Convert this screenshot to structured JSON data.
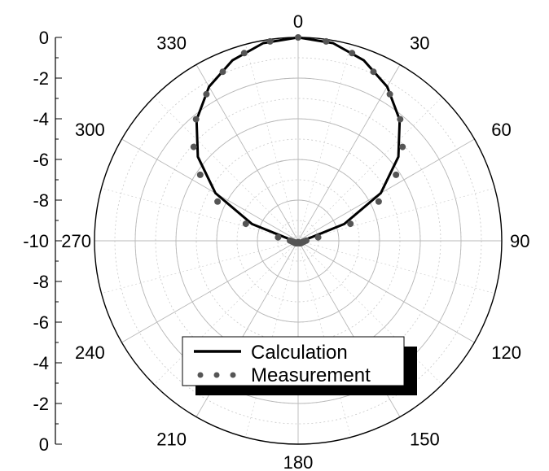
{
  "chart_data": {
    "type": "polar",
    "angle_labels": [
      "0",
      "30",
      "60",
      "90",
      "120",
      "150",
      "180",
      "210",
      "240",
      "270",
      "300",
      "330"
    ],
    "radial_axis": {
      "range": [
        -10,
        0
      ],
      "tick_labels_upper": [
        "0",
        "-2",
        "-4",
        "-6",
        "-8",
        "-10"
      ],
      "tick_labels_lower": [
        "-8",
        "-6",
        "-4",
        "-2",
        "0"
      ]
    },
    "series": [
      {
        "name": "Calculation",
        "style": "line",
        "color": "#000000",
        "theta_deg": [
          0,
          10,
          20,
          30,
          40,
          50,
          60,
          70,
          80,
          90,
          100,
          110,
          120,
          130,
          140,
          150,
          160,
          165,
          170,
          175,
          180,
          185,
          190,
          195,
          200,
          210,
          220,
          230,
          240,
          250,
          260,
          270,
          280,
          290,
          300,
          310,
          320,
          330,
          340,
          350,
          360
        ],
        "r_db": [
          0,
          -0.13,
          -0.56,
          -1.25,
          -2.24,
          -3.57,
          -5.31,
          -7.59,
          -9.6,
          -9.7,
          -9.75,
          -9.78,
          -9.8,
          -9.82,
          -9.84,
          -9.86,
          -9.88,
          -9.89,
          -9.9,
          -9.92,
          -9.95,
          -9.92,
          -9.9,
          -9.89,
          -9.88,
          -9.86,
          -9.84,
          -9.82,
          -9.8,
          -9.78,
          -9.75,
          -9.7,
          -9.6,
          -7.59,
          -5.31,
          -3.57,
          -2.24,
          -1.25,
          -0.56,
          -0.13,
          0
        ]
      },
      {
        "name": "Measurement",
        "style": "dots",
        "color": "#555555",
        "theta_deg": [
          0,
          8,
          16,
          24,
          32,
          40,
          48,
          56,
          64,
          72,
          80,
          88,
          96,
          104,
          112,
          120,
          128,
          136,
          144,
          152,
          160,
          168,
          176,
          184,
          192,
          200,
          208,
          216,
          224,
          232,
          240,
          248,
          256,
          264,
          272,
          280,
          288,
          296,
          304,
          312,
          320,
          328,
          336,
          344,
          352
        ],
        "r_db": [
          0,
          -0.1,
          -0.4,
          -0.9,
          -1.5,
          -2.2,
          -3.1,
          -4.2,
          -5.6,
          -7.3,
          -9.0,
          -9.6,
          -9.7,
          -9.75,
          -9.8,
          -9.8,
          -9.82,
          -9.84,
          -9.85,
          -9.87,
          -9.88,
          -9.9,
          -9.93,
          -9.93,
          -9.9,
          -9.88,
          -9.87,
          -9.85,
          -9.84,
          -9.82,
          -9.8,
          -9.8,
          -9.75,
          -9.7,
          -9.6,
          -9.0,
          -7.3,
          -5.6,
          -4.2,
          -3.1,
          -2.2,
          -1.5,
          -0.9,
          -0.4,
          -0.1
        ]
      }
    ],
    "legend": {
      "placement": "bottom-center",
      "entries": [
        "Calculation",
        "Measurement"
      ]
    },
    "grid": true
  }
}
